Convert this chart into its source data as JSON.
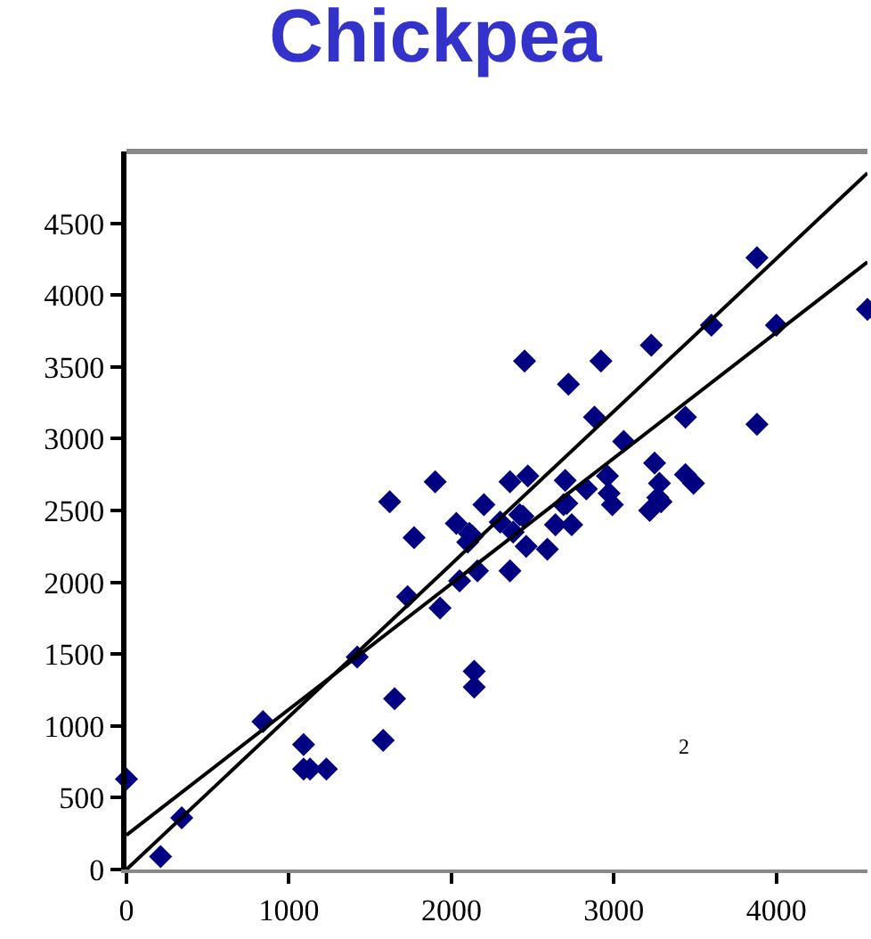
{
  "chart_data": {
    "type": "scatter",
    "title": "Chickpea",
    "xlim": [
      0,
      4560
    ],
    "ylim": [
      0,
      5000
    ],
    "xticks": [
      0,
      1000,
      2000,
      3000,
      4000
    ],
    "yticks": [
      0,
      500,
      1000,
      1500,
      2000,
      2500,
      3000,
      3500,
      4000,
      4500
    ],
    "marker": "diamond",
    "series": [
      {
        "color": "#000080",
        "x": [
          0,
          210,
          340,
          840,
          1090,
          1090,
          1130,
          1230,
          1420,
          1580,
          1650,
          1620,
          1730,
          1770,
          1900,
          1930,
          2030,
          2050,
          2100,
          2130,
          2140,
          2140,
          2160,
          2200,
          2300,
          2360,
          2380,
          2440,
          2460,
          2590,
          2640,
          2740,
          2710,
          2990,
          3220,
          3290,
          2360,
          2470,
          2450,
          2700,
          2720,
          2690,
          2830,
          2880,
          2920,
          2960,
          2970,
          3060,
          3230,
          3250,
          3280,
          3440,
          3440,
          3490,
          3600,
          3880,
          3880,
          4000,
          4560,
          2110,
          2420,
          3270
        ],
        "values": [
          630,
          90,
          360,
          1030,
          870,
          700,
          700,
          700,
          1480,
          900,
          1190,
          2560,
          1900,
          2310,
          2700,
          1820,
          2410,
          2010,
          2280,
          2320,
          1380,
          1270,
          2080,
          2540,
          2420,
          2080,
          2350,
          2460,
          2250,
          2230,
          2400,
          2400,
          2550,
          2540,
          2500,
          2560,
          2700,
          2740,
          3540,
          2710,
          3380,
          2540,
          2650,
          3150,
          3540,
          2740,
          2620,
          2980,
          3650,
          2830,
          2690,
          3150,
          2750,
          2690,
          3790,
          4260,
          3100,
          3790,
          3900,
          2340,
          2470,
          2590
        ]
      },
      {
        "type": "line",
        "color": "#000000",
        "x": [
          0,
          4560
        ],
        "values": [
          0,
          4850
        ],
        "marker": "none"
      },
      {
        "type": "line",
        "color": "#000000",
        "x": [
          0,
          4560
        ],
        "values": [
          240,
          4230
        ],
        "marker": "none"
      }
    ],
    "annotations": [
      "2"
    ]
  }
}
